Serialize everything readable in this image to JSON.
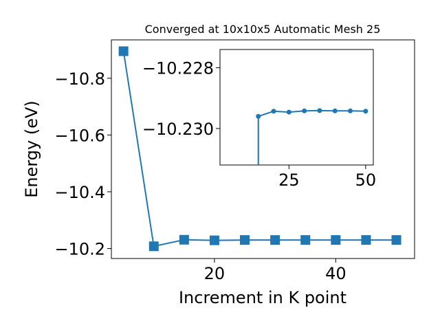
{
  "chart_data": [
    {
      "type": "line",
      "role": "main",
      "title": "Converged at 10x10x5 Automatic Mesh 25",
      "xlabel": "Increment in K point",
      "ylabel": "Energy (eV)",
      "xlim": [
        3,
        53
      ],
      "ylim": [
        -10.935,
        -10.165
      ],
      "grid": false,
      "xticks": [
        20,
        40
      ],
      "xtick_labels": [
        "20",
        "40"
      ],
      "yticks": [
        -10.2,
        -10.4,
        -10.6,
        -10.8
      ],
      "ytick_labels": [
        "−10.2",
        "−10.4",
        "−10.6",
        "−10.8"
      ],
      "marker": "square",
      "color": "#1f77b4",
      "series": [
        {
          "x": [
            5,
            10,
            15,
            20,
            25,
            30,
            35,
            40,
            45,
            50
          ],
          "y": [
            -10.895,
            -10.208,
            -10.231,
            -10.229,
            -10.2302,
            -10.2302,
            -10.2302,
            -10.2302,
            -10.2302,
            -10.2302
          ]
        }
      ]
    },
    {
      "type": "line",
      "role": "inset",
      "xlim": [
        2.5,
        52.5
      ],
      "ylim": [
        -10.2274,
        -10.2312
      ],
      "grid": false,
      "xticks": [
        25,
        50
      ],
      "xtick_labels": [
        "25",
        "50"
      ],
      "yticks": [
        -10.23,
        -10.228
      ],
      "ytick_labels": [
        "−10.230",
        "−10.228"
      ],
      "marker": "circle",
      "color": "#1f77b4",
      "series": [
        {
          "x": [
            15,
            15,
            20,
            25,
            30,
            35,
            40,
            45,
            50
          ],
          "y": [
            -10.2312,
            -10.2296,
            -10.22943,
            -10.22946,
            -10.22942,
            -10.22941,
            -10.22942,
            -10.22942,
            -10.22943
          ]
        }
      ]
    }
  ]
}
